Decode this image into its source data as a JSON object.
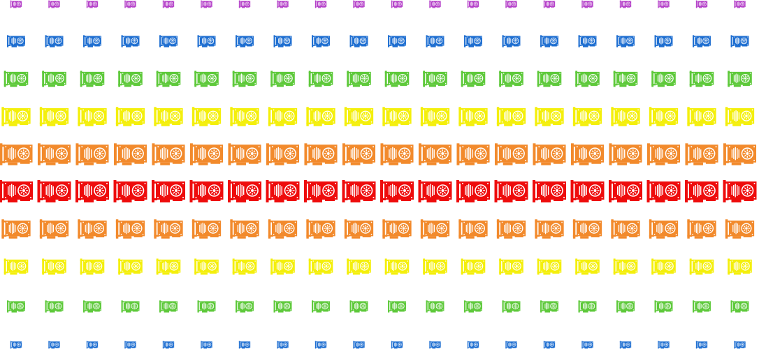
{
  "icon_name": "graphics-card-icon",
  "columns_per_row": 20,
  "rows": [
    {
      "color": "#b541c9"
    },
    {
      "color": "#1f6fd1"
    },
    {
      "color": "#5ec93b"
    },
    {
      "color": "#f4ef0c"
    },
    {
      "color": "#f28a2c"
    },
    {
      "color": "#ee0c0c"
    },
    {
      "color": "#f28a2c"
    },
    {
      "color": "#f4ef0c"
    },
    {
      "color": "#5ec93b"
    },
    {
      "color": "#1f6fd1"
    }
  ]
}
